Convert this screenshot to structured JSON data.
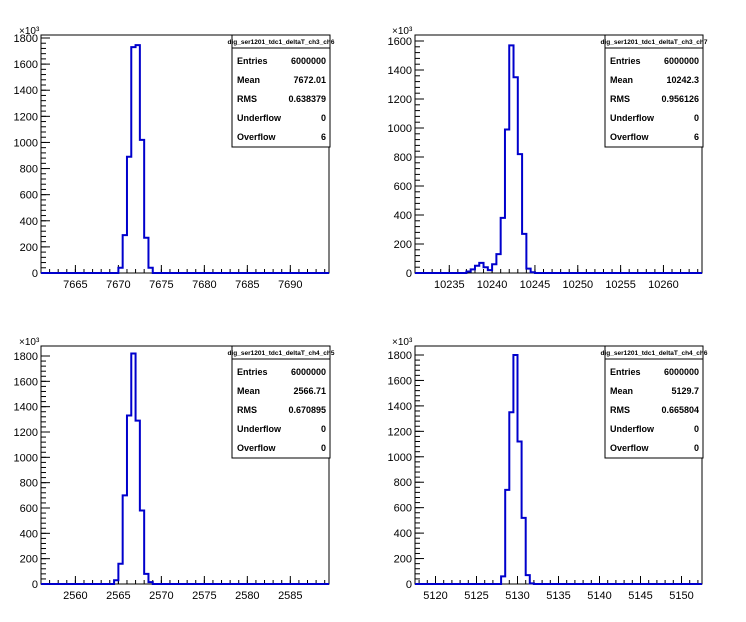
{
  "chart_data": [
    {
      "type": "histogram",
      "title": "dig_ser1201_tdc1_deltaT_ch3_ch6",
      "xlim": [
        7661,
        7694.5
      ],
      "ylim": [
        0,
        1800
      ],
      "y_multiplier": "×10³",
      "xticks": [
        7665,
        7670,
        7675,
        7680,
        7685,
        7690
      ],
      "yticks": [
        0,
        200,
        400,
        600,
        800,
        1000,
        1200,
        1400,
        1600,
        1800
      ],
      "bin_width": 0.5,
      "bins": [
        {
          "x": 7670.0,
          "y": 40
        },
        {
          "x": 7670.5,
          "y": 290
        },
        {
          "x": 7671.0,
          "y": 890
        },
        {
          "x": 7671.5,
          "y": 1730
        },
        {
          "x": 7672.0,
          "y": 1745
        },
        {
          "x": 7672.5,
          "y": 1020
        },
        {
          "x": 7673.0,
          "y": 270
        },
        {
          "x": 7673.5,
          "y": 40
        }
      ],
      "stats": {
        "entries": "6000000",
        "mean": "7672.01",
        "rms": "0.638379",
        "underflow": "0",
        "overflow": "6"
      }
    },
    {
      "type": "histogram",
      "title": "dig_ser1201_tdc1_deltaT_ch3_ch7",
      "xlim": [
        10231,
        10264.5
      ],
      "ylim": [
        0,
        1600
      ],
      "y_multiplier": "×10³",
      "xticks": [
        10235,
        10240,
        10245,
        10250,
        10255,
        10260
      ],
      "yticks": [
        0,
        200,
        400,
        600,
        800,
        1000,
        1200,
        1400,
        1600
      ],
      "bin_width": 0.5,
      "bins": [
        {
          "x": 10237.0,
          "y": 10
        },
        {
          "x": 10237.5,
          "y": 25
        },
        {
          "x": 10238.0,
          "y": 50
        },
        {
          "x": 10238.5,
          "y": 70
        },
        {
          "x": 10239.0,
          "y": 40
        },
        {
          "x": 10239.5,
          "y": 20
        },
        {
          "x": 10240.0,
          "y": 60
        },
        {
          "x": 10240.5,
          "y": 130
        },
        {
          "x": 10241.0,
          "y": 380
        },
        {
          "x": 10241.5,
          "y": 990
        },
        {
          "x": 10242.0,
          "y": 1570
        },
        {
          "x": 10242.5,
          "y": 1350
        },
        {
          "x": 10243.0,
          "y": 820
        },
        {
          "x": 10243.5,
          "y": 270
        },
        {
          "x": 10244.0,
          "y": 30
        },
        {
          "x": 10244.5,
          "y": 5
        }
      ],
      "stats": {
        "entries": "6000000",
        "mean": "10242.3",
        "rms": "0.956126",
        "underflow": "0",
        "overflow": "6"
      }
    },
    {
      "type": "histogram",
      "title": "dig_ser1201_tdc1_deltaT_ch4_ch5",
      "xlim": [
        2556,
        2589.5
      ],
      "ylim": [
        0,
        1800
      ],
      "y_multiplier": "×10³",
      "xticks": [
        2560,
        2565,
        2570,
        2575,
        2580,
        2585
      ],
      "yticks": [
        0,
        200,
        400,
        600,
        800,
        1000,
        1200,
        1400,
        1600,
        1800
      ],
      "bin_width": 0.5,
      "bins": [
        {
          "x": 2564.5,
          "y": 30
        },
        {
          "x": 2565.0,
          "y": 160
        },
        {
          "x": 2565.5,
          "y": 700
        },
        {
          "x": 2566.0,
          "y": 1330
        },
        {
          "x": 2566.5,
          "y": 1820
        },
        {
          "x": 2567.0,
          "y": 1290
        },
        {
          "x": 2567.5,
          "y": 580
        },
        {
          "x": 2568.0,
          "y": 80
        },
        {
          "x": 2568.5,
          "y": 15
        }
      ],
      "stats": {
        "entries": "6000000",
        "mean": "2566.71",
        "rms": "0.670895",
        "underflow": "0",
        "overflow": "0"
      }
    },
    {
      "type": "histogram",
      "title": "dig_ser1201_tdc1_deltaT_ch4_ch6",
      "xlim": [
        5117.5,
        5152.5
      ],
      "ylim": [
        0,
        1800
      ],
      "y_multiplier": "×10³",
      "xticks": [
        5120,
        5125,
        5130,
        5135,
        5140,
        5145,
        5150
      ],
      "yticks": [
        0,
        200,
        400,
        600,
        800,
        1000,
        1200,
        1400,
        1600,
        1800
      ],
      "bin_width": 0.5,
      "bins": [
        {
          "x": 5128.0,
          "y": 60
        },
        {
          "x": 5128.5,
          "y": 740
        },
        {
          "x": 5129.0,
          "y": 1350
        },
        {
          "x": 5129.5,
          "y": 1800
        },
        {
          "x": 5130.0,
          "y": 1120
        },
        {
          "x": 5130.5,
          "y": 520
        },
        {
          "x": 5131.0,
          "y": 70
        },
        {
          "x": 5131.5,
          "y": 5
        }
      ],
      "stats": {
        "entries": "6000000",
        "mean": "5129.7",
        "rms": "0.665804",
        "underflow": "0",
        "overflow": "0"
      }
    }
  ],
  "labels": {
    "entries": "Entries",
    "mean": "Mean",
    "rms": "RMS",
    "underflow": "Underflow",
    "overflow": "Overflow"
  },
  "colors": {
    "histogram_line": "#0000cc",
    "axis": "#000000",
    "background": "#ffffff"
  }
}
